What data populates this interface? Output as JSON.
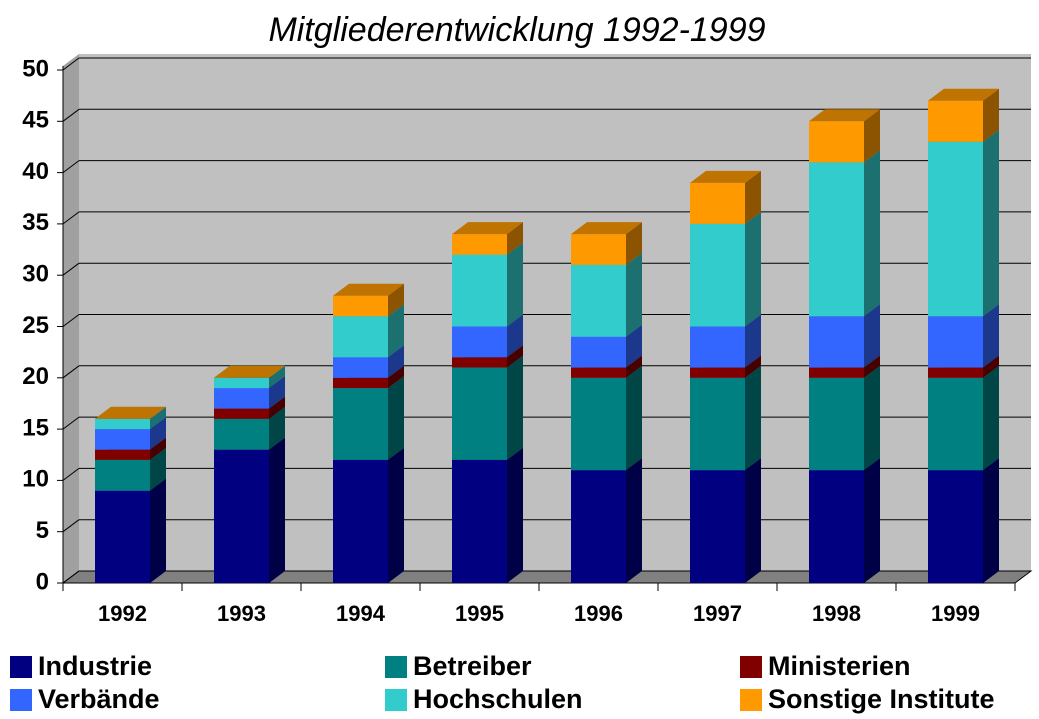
{
  "chart_data": {
    "type": "bar3d_stacked",
    "title": "Mitgliederentwicklung 1992-1999",
    "categories": [
      "1992",
      "1993",
      "1994",
      "1995",
      "1996",
      "1997",
      "1998",
      "1999"
    ],
    "series": [
      {
        "name": "Industrie",
        "color": "#000080",
        "values": [
          9,
          13,
          12,
          12,
          11,
          11,
          11,
          11
        ]
      },
      {
        "name": "Betreiber",
        "color": "#008080",
        "values": [
          3,
          3,
          7,
          9,
          9,
          9,
          9,
          9
        ]
      },
      {
        "name": "Ministerien",
        "color": "#800000",
        "values": [
          1,
          1,
          1,
          1,
          1,
          1,
          1,
          1
        ]
      },
      {
        "name": "Verbände",
        "color": "#3366ff",
        "values": [
          2,
          2,
          2,
          3,
          3,
          4,
          5,
          5
        ]
      },
      {
        "name": "Hochschulen",
        "color": "#33cccc",
        "values": [
          1,
          1,
          4,
          7,
          7,
          10,
          15,
          17
        ]
      },
      {
        "name": "Sonstige Institute",
        "color": "#ff9900",
        "values": [
          0,
          0,
          2,
          2,
          3,
          4,
          4,
          4
        ]
      }
    ],
    "ylim": [
      0,
      50
    ],
    "yticks": [
      0,
      5,
      10,
      15,
      20,
      25,
      30,
      35,
      40,
      45,
      50
    ],
    "grid": true
  }
}
